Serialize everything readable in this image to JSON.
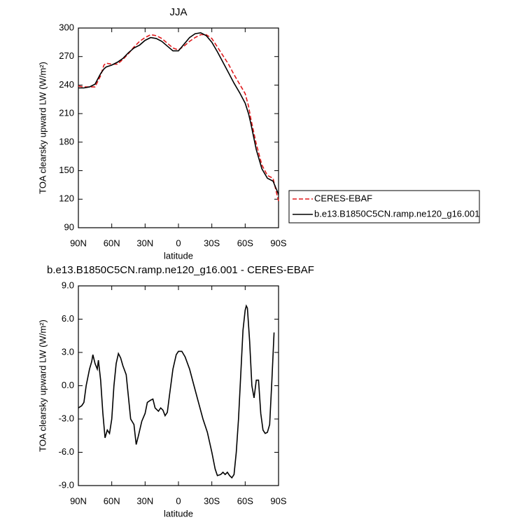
{
  "chart_data": [
    {
      "type": "line",
      "title": "JJA",
      "xlabel": "latitude",
      "ylabel": "TOA clearsky upward LW (W/m²)",
      "x": [
        90,
        85,
        80,
        75,
        70,
        67,
        65,
        60,
        55,
        50,
        45,
        40,
        35,
        30,
        25,
        20,
        15,
        10,
        5,
        0,
        -5,
        -10,
        -15,
        -20,
        -25,
        -30,
        -35,
        -40,
        -45,
        -50,
        -55,
        -60,
        -63,
        -65,
        -70,
        -75,
        -80,
        -85,
        -90
      ],
      "series": [
        {
          "name": "CERES-EBAF",
          "color": "#e0191b",
          "linestyle": "dashed",
          "values": [
            239,
            238,
            238,
            238,
            250,
            261,
            263,
            262,
            262,
            267,
            273,
            280,
            286,
            290,
            293,
            292,
            289,
            284,
            279,
            277,
            281,
            286,
            290,
            293,
            293,
            289,
            280,
            271,
            262,
            251,
            241,
            231,
            218,
            205,
            178,
            156,
            145,
            142,
            118
          ]
        },
        {
          "name": "b.e13.B1850C5CN.ramp.ne120_g16.001",
          "color": "#000000",
          "linestyle": "solid",
          "values": [
            237,
            237,
            238,
            241,
            252,
            257,
            259,
            261,
            264,
            268,
            274,
            279,
            282,
            287,
            290,
            289,
            286,
            281,
            276,
            276,
            283,
            290,
            294,
            295,
            292,
            285,
            275,
            264,
            253,
            242,
            232,
            221,
            210,
            200,
            172,
            152,
            142,
            139,
            125
          ]
        }
      ],
      "xlim": [
        90,
        -90
      ],
      "xticks": [
        {
          "value": 90,
          "label": "90N"
        },
        {
          "value": 60,
          "label": "60N"
        },
        {
          "value": 30,
          "label": "30N"
        },
        0,
        {
          "value": -30,
          "label": "30S"
        },
        {
          "value": -60,
          "label": "60S"
        },
        {
          "value": -90,
          "label": "90S"
        }
      ],
      "ylim": [
        90,
        300
      ],
      "yticks": [
        90,
        120,
        150,
        180,
        210,
        240,
        270,
        300
      ],
      "grid": false,
      "legend": "right"
    },
    {
      "type": "line",
      "title": "b.e13.B1850C5CN.ramp.ne120_g16.001 - CERES-EBAF",
      "xlabel": "latitude",
      "ylabel": "TOA clearsky upward LW (W/m²)",
      "x": [
        90,
        87,
        85,
        83,
        80,
        78,
        77,
        75,
        73,
        72,
        70,
        68,
        66,
        64,
        62,
        60,
        58,
        56,
        54,
        52,
        50,
        47,
        45,
        43,
        40,
        38,
        36,
        33,
        30,
        28,
        25,
        23,
        21,
        18,
        16,
        14,
        12,
        10,
        8,
        5,
        2,
        0,
        -3,
        -6,
        -10,
        -14,
        -18,
        -22,
        -26,
        -30,
        -33,
        -35,
        -38,
        -40,
        -42,
        -44,
        -46,
        -48,
        -50,
        -52,
        -54,
        -56,
        -58,
        -60,
        -61,
        -62,
        -64,
        -66,
        -68,
        -70,
        -72,
        -74,
        -76,
        -78,
        -80,
        -82,
        -84,
        -86
      ],
      "series": [
        {
          "name": "b.e13.B1850C5CN.ramp.ne120_g16.001 - CERES-EBAF",
          "color": "#000000",
          "linestyle": "solid",
          "values": [
            -2.0,
            -1.8,
            -1.5,
            0,
            1.5,
            2.2,
            2.8,
            2.0,
            1.5,
            2.3,
            0.5,
            -2.5,
            -4.7,
            -4.0,
            -4.3,
            -3.0,
            0,
            2.0,
            2.9,
            2.5,
            1.8,
            1.0,
            -1.0,
            -3.0,
            -3.5,
            -5.3,
            -4.5,
            -3.2,
            -2.5,
            -1.5,
            -1.3,
            -1.2,
            -2.0,
            -2.3,
            -2.0,
            -2.2,
            -2.7,
            -2.4,
            -0.8,
            1.5,
            2.8,
            3.1,
            3.1,
            2.6,
            1.5,
            0,
            -1.5,
            -3.0,
            -4.2,
            -6.0,
            -7.5,
            -8.1,
            -8.0,
            -7.8,
            -8.0,
            -7.8,
            -8.1,
            -8.3,
            -8.0,
            -6.0,
            -3.0,
            1.0,
            5.0,
            6.8,
            7.2,
            7.0,
            4.0,
            0,
            -1.1,
            0.5,
            0.5,
            -2.5,
            -4.0,
            -4.3,
            -4.2,
            -3.5,
            0.5,
            4.8
          ]
        }
      ],
      "xlim": [
        90,
        -90
      ],
      "xticks": [
        {
          "value": 90,
          "label": "90N"
        },
        {
          "value": 60,
          "label": "60N"
        },
        {
          "value": 30,
          "label": "30N"
        },
        0,
        {
          "value": -30,
          "label": "30S"
        },
        {
          "value": -60,
          "label": "60S"
        },
        {
          "value": -90,
          "label": "90S"
        }
      ],
      "ylim": [
        -9,
        9
      ],
      "yticks": [
        {
          "value": -9,
          "label": "-9.0"
        },
        {
          "value": -6,
          "label": "-6.0"
        },
        {
          "value": -3,
          "label": "-3.0"
        },
        {
          "value": 0,
          "label": "0.0"
        },
        {
          "value": 3,
          "label": "3.0"
        },
        {
          "value": 6,
          "label": "6.0"
        },
        {
          "value": 9,
          "label": "9.0"
        }
      ],
      "grid": false
    }
  ]
}
